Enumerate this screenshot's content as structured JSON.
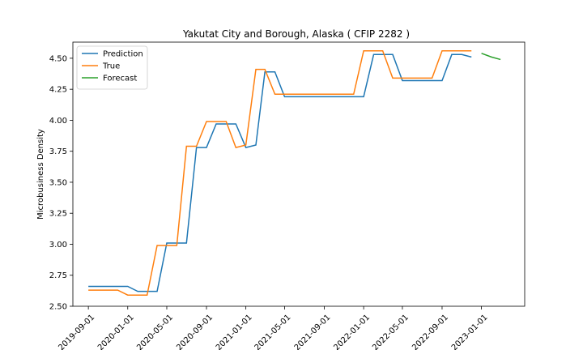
{
  "chart_data": {
    "type": "line",
    "title": "Yakutat City and Borough, Alaska ( CFIP 2282 )",
    "xlabel": "",
    "ylabel": "Microbusiness Density",
    "xlim": [
      "2019-07-15",
      "2023-05-15"
    ],
    "ylim": [
      2.5,
      4.63
    ],
    "x_ticks": [
      "2019-09-01",
      "2020-01-01",
      "2020-05-01",
      "2020-09-01",
      "2021-01-01",
      "2021-05-01",
      "2021-09-01",
      "2022-01-01",
      "2022-05-01",
      "2022-09-01",
      "2023-01-01"
    ],
    "y_ticks": [
      "2.50",
      "2.75",
      "3.00",
      "3.25",
      "3.50",
      "3.75",
      "4.00",
      "4.25",
      "4.50"
    ],
    "legend_position": "upper-left",
    "grid": false,
    "series": [
      {
        "name": "Prediction",
        "color": "#1f77b4",
        "points": [
          [
            "2019-09-01",
            2.66
          ],
          [
            "2019-10-01",
            2.66
          ],
          [
            "2019-11-01",
            2.66
          ],
          [
            "2019-12-01",
            2.66
          ],
          [
            "2020-01-01",
            2.66
          ],
          [
            "2020-02-01",
            2.62
          ],
          [
            "2020-03-01",
            2.62
          ],
          [
            "2020-04-01",
            2.62
          ],
          [
            "2020-05-01",
            3.01
          ],
          [
            "2020-06-01",
            3.01
          ],
          [
            "2020-07-01",
            3.01
          ],
          [
            "2020-08-01",
            3.78
          ],
          [
            "2020-09-01",
            3.78
          ],
          [
            "2020-10-01",
            3.97
          ],
          [
            "2020-11-01",
            3.97
          ],
          [
            "2020-12-01",
            3.97
          ],
          [
            "2021-01-01",
            3.78
          ],
          [
            "2021-02-01",
            3.8
          ],
          [
            "2021-03-01",
            4.39
          ],
          [
            "2021-04-01",
            4.39
          ],
          [
            "2021-05-01",
            4.19
          ],
          [
            "2021-06-01",
            4.19
          ],
          [
            "2021-07-01",
            4.19
          ],
          [
            "2021-08-01",
            4.19
          ],
          [
            "2021-09-01",
            4.19
          ],
          [
            "2021-10-01",
            4.19
          ],
          [
            "2021-11-01",
            4.19
          ],
          [
            "2021-12-01",
            4.19
          ],
          [
            "2022-01-01",
            4.19
          ],
          [
            "2022-02-01",
            4.53
          ],
          [
            "2022-03-01",
            4.53
          ],
          [
            "2022-04-01",
            4.53
          ],
          [
            "2022-05-01",
            4.32
          ],
          [
            "2022-06-01",
            4.32
          ],
          [
            "2022-07-01",
            4.32
          ],
          [
            "2022-08-01",
            4.32
          ],
          [
            "2022-09-01",
            4.32
          ],
          [
            "2022-10-01",
            4.53
          ],
          [
            "2022-11-01",
            4.53
          ],
          [
            "2022-12-01",
            4.51
          ]
        ]
      },
      {
        "name": "True",
        "color": "#ff7f0e",
        "points": [
          [
            "2019-09-01",
            2.63
          ],
          [
            "2019-10-01",
            2.63
          ],
          [
            "2019-11-01",
            2.63
          ],
          [
            "2019-12-01",
            2.63
          ],
          [
            "2020-01-01",
            2.59
          ],
          [
            "2020-02-01",
            2.59
          ],
          [
            "2020-03-01",
            2.59
          ],
          [
            "2020-04-01",
            2.99
          ],
          [
            "2020-05-01",
            2.99
          ],
          [
            "2020-06-01",
            2.99
          ],
          [
            "2020-07-01",
            3.79
          ],
          [
            "2020-08-01",
            3.79
          ],
          [
            "2020-09-01",
            3.99
          ],
          [
            "2020-10-01",
            3.99
          ],
          [
            "2020-11-01",
            3.99
          ],
          [
            "2020-12-01",
            3.78
          ],
          [
            "2021-01-01",
            3.8
          ],
          [
            "2021-02-01",
            4.41
          ],
          [
            "2021-03-01",
            4.41
          ],
          [
            "2021-04-01",
            4.21
          ],
          [
            "2021-05-01",
            4.21
          ],
          [
            "2021-06-01",
            4.21
          ],
          [
            "2021-07-01",
            4.21
          ],
          [
            "2021-08-01",
            4.21
          ],
          [
            "2021-09-01",
            4.21
          ],
          [
            "2021-10-01",
            4.21
          ],
          [
            "2021-11-01",
            4.21
          ],
          [
            "2021-12-01",
            4.21
          ],
          [
            "2022-01-01",
            4.56
          ],
          [
            "2022-02-01",
            4.56
          ],
          [
            "2022-03-01",
            4.56
          ],
          [
            "2022-04-01",
            4.34
          ],
          [
            "2022-05-01",
            4.34
          ],
          [
            "2022-06-01",
            4.34
          ],
          [
            "2022-07-01",
            4.34
          ],
          [
            "2022-08-01",
            4.34
          ],
          [
            "2022-09-01",
            4.56
          ],
          [
            "2022-10-01",
            4.56
          ],
          [
            "2022-11-01",
            4.56
          ],
          [
            "2022-12-01",
            4.56
          ]
        ]
      },
      {
        "name": "Forecast",
        "color": "#2ca02c",
        "points": [
          [
            "2023-01-01",
            4.54
          ],
          [
            "2023-02-01",
            4.51
          ],
          [
            "2023-03-01",
            4.49
          ]
        ]
      }
    ]
  }
}
